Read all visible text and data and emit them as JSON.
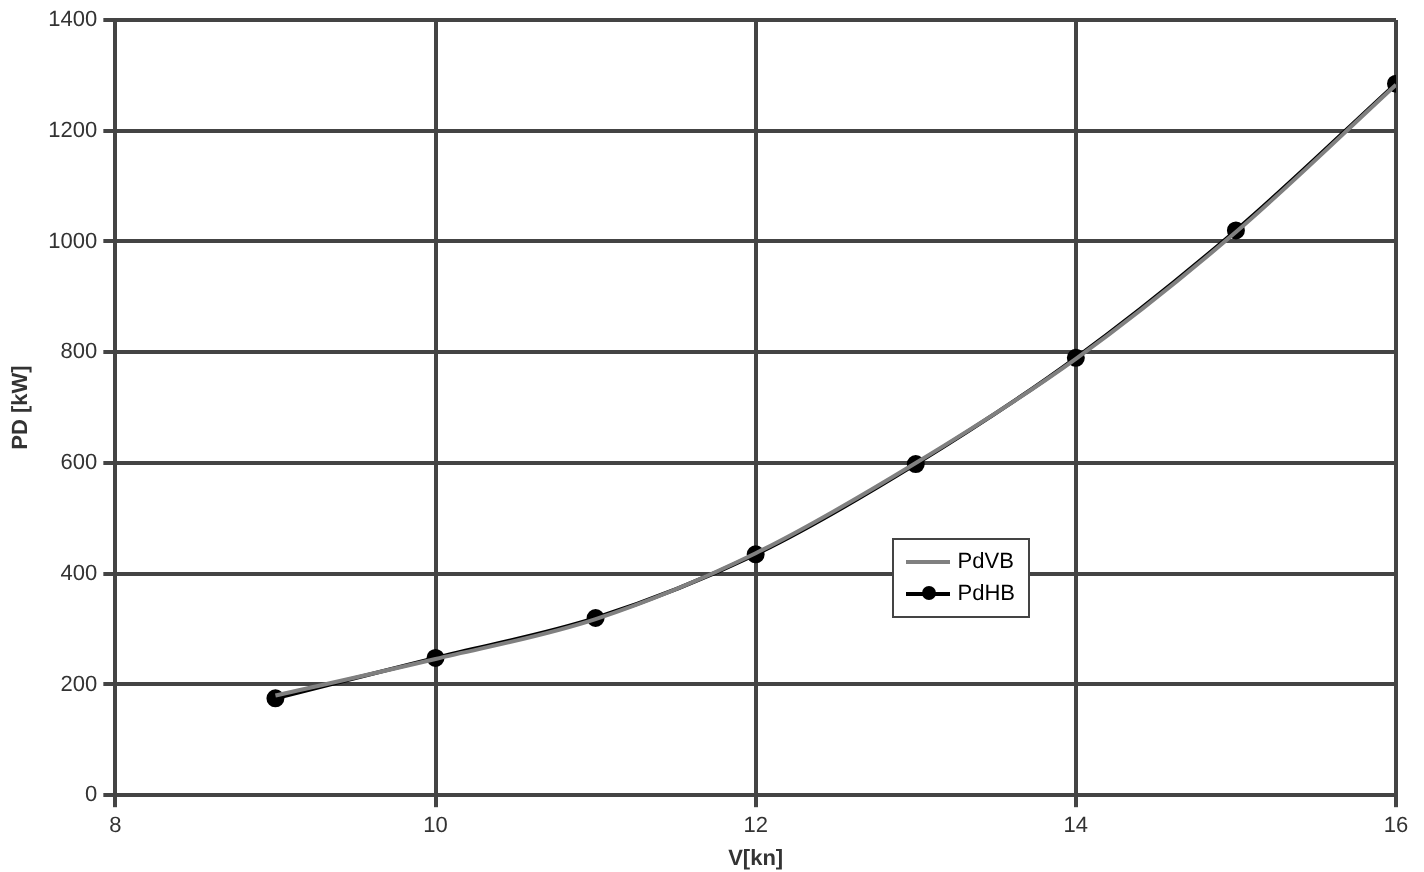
{
  "chart_data": {
    "type": "line",
    "xlabel": "V[kn]",
    "ylabel": "PD [kW]",
    "x": [
      9,
      10,
      11,
      12,
      13,
      14,
      15,
      16
    ],
    "series": [
      {
        "name": "PdVB",
        "color": "#808080",
        "marker": "none",
        "values": [
          180,
          246,
          318,
          437,
          600,
          788,
          1017,
          1283
        ]
      },
      {
        "name": "PdHB",
        "color": "#000000",
        "marker": "circle",
        "values": [
          175,
          248,
          320,
          435,
          598,
          790,
          1020,
          1285
        ]
      }
    ],
    "xlim": [
      8,
      16
    ],
    "xticks": [
      8,
      10,
      12,
      14,
      16
    ],
    "ylim": [
      0,
      1400
    ],
    "yticks": [
      0,
      200,
      400,
      600,
      800,
      1000,
      1200,
      1400
    ],
    "grid": true,
    "legend": "right"
  }
}
